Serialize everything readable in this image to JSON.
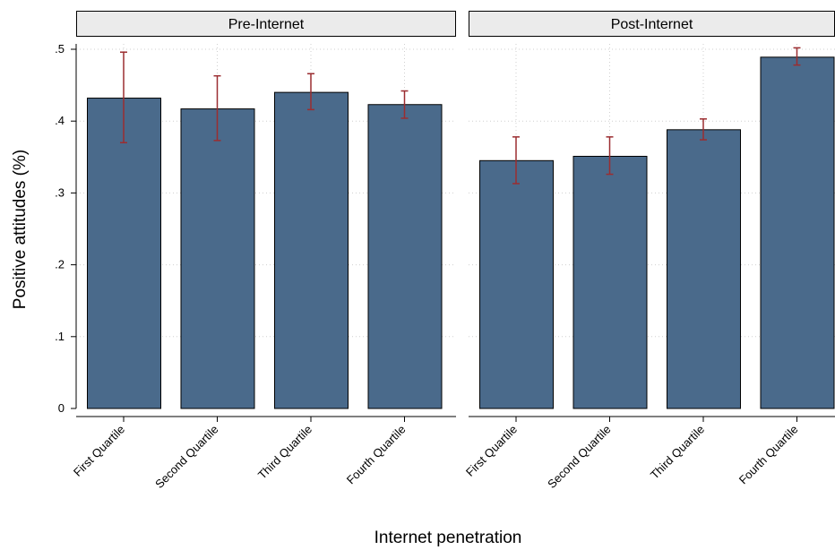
{
  "chart_data": {
    "type": "bar",
    "xlabel": "Internet penetration",
    "ylabel": "Positive attitudes (%)",
    "ylim": [
      0,
      0.5
    ],
    "yticks": [
      {
        "value": 0,
        "label": "0"
      },
      {
        "value": 0.1,
        "label": ".1"
      },
      {
        "value": 0.2,
        "label": ".2"
      },
      {
        "value": 0.3,
        "label": ".3"
      },
      {
        "value": 0.4,
        "label": ".4"
      },
      {
        "value": 0.5,
        "label": ".5"
      }
    ],
    "grid": true,
    "colors": {
      "bar": "#4a6a8b",
      "error_bar": "#9b2d30"
    },
    "panels": [
      {
        "title": "Pre-Internet",
        "categories": [
          "First Quartile",
          "Second Quartile",
          "Third Quartile",
          "Fourth Quartile"
        ],
        "values": [
          0.432,
          0.417,
          0.44,
          0.423
        ],
        "ci_lower": [
          0.37,
          0.373,
          0.416,
          0.404
        ],
        "ci_upper": [
          0.496,
          0.463,
          0.466,
          0.442
        ]
      },
      {
        "title": "Post-Internet",
        "categories": [
          "First Quartile",
          "Second Quartile",
          "Third Quartile",
          "Fourth Quartile"
        ],
        "values": [
          0.345,
          0.351,
          0.388,
          0.489
        ],
        "ci_lower": [
          0.313,
          0.326,
          0.374,
          0.478
        ],
        "ci_upper": [
          0.378,
          0.378,
          0.403,
          0.502
        ]
      }
    ]
  }
}
